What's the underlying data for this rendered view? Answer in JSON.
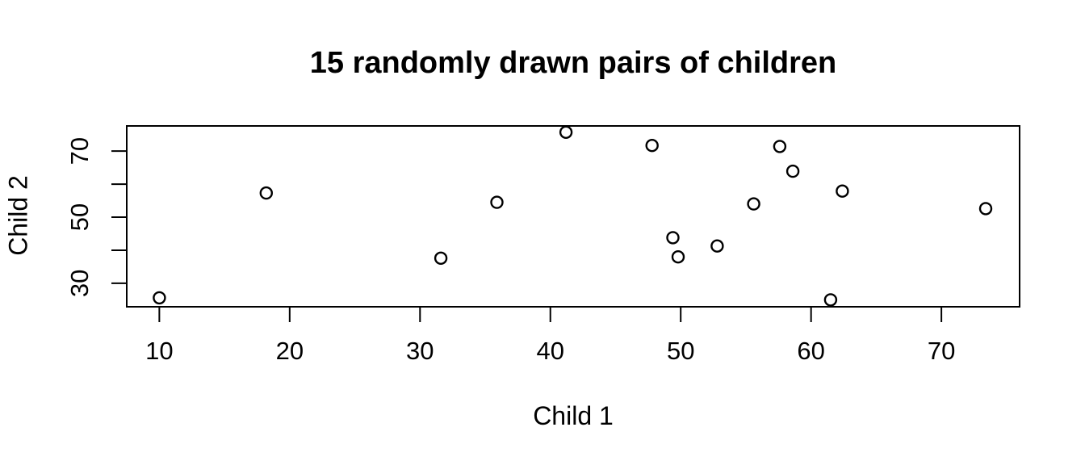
{
  "figure": {
    "kind": "R-base-graphics scatterplot",
    "background": "#ffffff"
  },
  "chart_data": {
    "type": "scatter",
    "title": "15 randomly drawn pairs of children",
    "xlabel": "Child 1",
    "ylabel": "Child 2",
    "n_points": 15,
    "points": [
      [
        10.0,
        25.6
      ],
      [
        18.2,
        57.3
      ],
      [
        31.6,
        37.6
      ],
      [
        35.9,
        54.5
      ],
      [
        41.2,
        75.7
      ],
      [
        47.8,
        71.7
      ],
      [
        49.4,
        43.8
      ],
      [
        49.8,
        38.0
      ],
      [
        52.8,
        41.3
      ],
      [
        55.6,
        54.0
      ],
      [
        57.6,
        71.4
      ],
      [
        58.6,
        63.9
      ],
      [
        61.5,
        25.0
      ],
      [
        62.4,
        57.9
      ],
      [
        73.4,
        52.6
      ]
    ],
    "x_ticks": [
      10,
      20,
      30,
      40,
      50,
      60,
      70
    ],
    "x_tick_labels": [
      "10",
      "20",
      "30",
      "40",
      "50",
      "60",
      "70"
    ],
    "y_ticks": [
      30,
      40,
      50,
      60,
      70
    ],
    "y_tick_labels": [
      "30",
      "",
      "50",
      "",
      "70"
    ],
    "xlim": [
      7.5,
      76.0
    ],
    "ylim": [
      22.9,
      77.6
    ],
    "grid": false,
    "legend": "none",
    "marker": {
      "shape": "open-circle",
      "color": "#000000"
    },
    "axis_color": "#000000",
    "title_color": "#000000"
  }
}
